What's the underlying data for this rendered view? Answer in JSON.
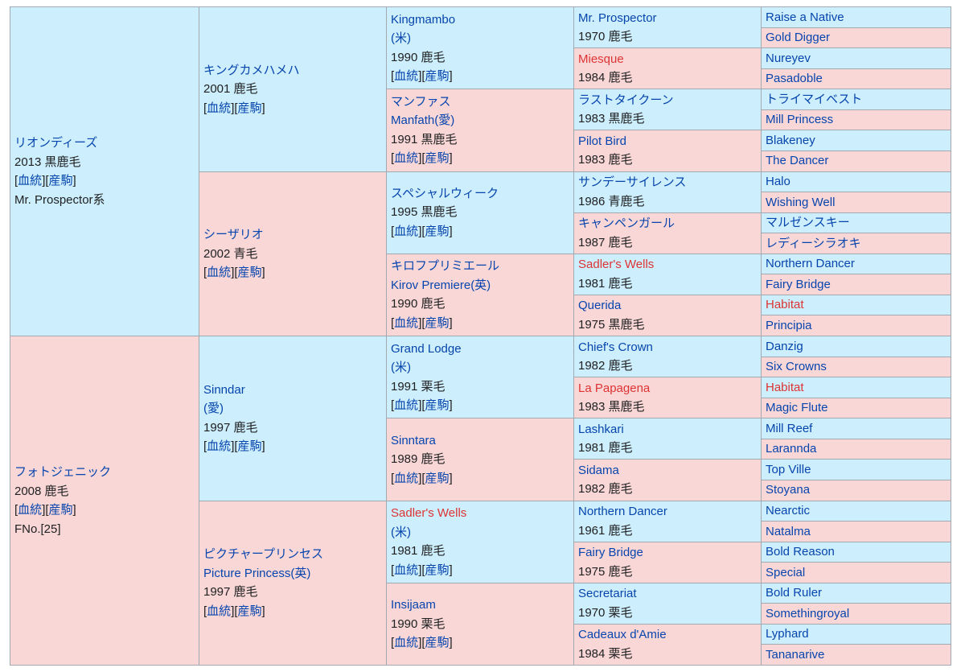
{
  "labels": {
    "bloodline": "血統",
    "produce": "産駒"
  },
  "colors": {
    "sire_bg": "#cdeefc",
    "dam_bg": "#fad7d7",
    "link": "#0645ad",
    "redlink": "#d33",
    "text": "#202122",
    "border": "#a2a9b1"
  },
  "gen1": {
    "sire": {
      "name": "リオンディーズ",
      "year_coat": "2013 黒鹿毛",
      "extra": "Mr. Prospector系"
    },
    "dam": {
      "name": "フォトジェニック",
      "year_coat": "2008 鹿毛",
      "extra": "FNo.[25]"
    }
  },
  "gen2": [
    {
      "name": "キングカメハメハ",
      "year_coat": "2001 鹿毛"
    },
    {
      "name": "シーザリオ",
      "year_coat": "2002 青毛"
    },
    {
      "name": "Sinndar",
      "origin": "(愛)",
      "year_coat": "1997 鹿毛"
    },
    {
      "name": "ピクチャープリンセス",
      "alt_name": "Picture Princess(英)",
      "year_coat": "1997 鹿毛"
    }
  ],
  "gen3": [
    {
      "name": "Kingmambo",
      "origin": "(米)",
      "year_coat": "1990 鹿毛"
    },
    {
      "name": "マンファス",
      "alt_name": "Manfath(愛)",
      "year_coat": "1991 黒鹿毛"
    },
    {
      "name": "スペシャルウィーク",
      "year_coat": "1995 黒鹿毛"
    },
    {
      "name": "キロフプリミエール",
      "alt_name": "Kirov Premiere(英)",
      "year_coat": "1990 鹿毛"
    },
    {
      "name": "Grand Lodge",
      "origin": "(米)",
      "year_coat": "1991 栗毛"
    },
    {
      "name": "Sinntara",
      "year_coat": "1989 鹿毛"
    },
    {
      "name": "Sadler's Wells",
      "origin": "(米)",
      "year_coat": "1981 鹿毛"
    },
    {
      "name": "Insijaam",
      "year_coat": "1990 栗毛"
    }
  ],
  "gen4": [
    {
      "name": "Mr. Prospector",
      "year_coat": "1970 鹿毛"
    },
    {
      "name": "Miesque",
      "year_coat": "1984 鹿毛"
    },
    {
      "name": "ラストタイクーン",
      "year_coat": "1983 黒鹿毛"
    },
    {
      "name": "Pilot Bird",
      "year_coat": "1983 鹿毛"
    },
    {
      "name": "サンデーサイレンス",
      "year_coat": "1986 青鹿毛"
    },
    {
      "name": "キャンペンガール",
      "year_coat": "1987 鹿毛"
    },
    {
      "name": "Sadler's Wells",
      "year_coat": "1981 鹿毛"
    },
    {
      "name": "Querida",
      "year_coat": "1975 黒鹿毛"
    },
    {
      "name": "Chief's Crown",
      "year_coat": "1982 鹿毛"
    },
    {
      "name": "La Papagena",
      "year_coat": "1983 黒鹿毛"
    },
    {
      "name": "Lashkari",
      "year_coat": "1981 鹿毛"
    },
    {
      "name": "Sidama",
      "year_coat": "1982 鹿毛"
    },
    {
      "name": "Northern Dancer",
      "year_coat": "1961 鹿毛"
    },
    {
      "name": "Fairy Bridge",
      "year_coat": "1975 鹿毛"
    },
    {
      "name": "Secretariat",
      "year_coat": "1970 栗毛"
    },
    {
      "name": "Cadeaux d'Amie",
      "year_coat": "1984 栗毛"
    }
  ],
  "gen5": [
    "Raise a Native",
    "Gold Digger",
    "Nureyev",
    "Pasadoble",
    "トライマイベスト",
    "Mill Princess",
    "Blakeney",
    "The Dancer",
    "Halo",
    "Wishing Well",
    "マルゼンスキー",
    "レディーシラオキ",
    "Northern Dancer",
    "Fairy Bridge",
    "Habitat",
    "Principia",
    "Danzig",
    "Six Crowns",
    "Habitat",
    "Magic Flute",
    "Mill Reef",
    "Larannda",
    "Top Ville",
    "Stoyana",
    "Nearctic",
    "Natalma",
    "Bold Reason",
    "Special",
    "Bold Ruler",
    "Somethingroyal",
    "Lyphard",
    "Tananarive"
  ]
}
